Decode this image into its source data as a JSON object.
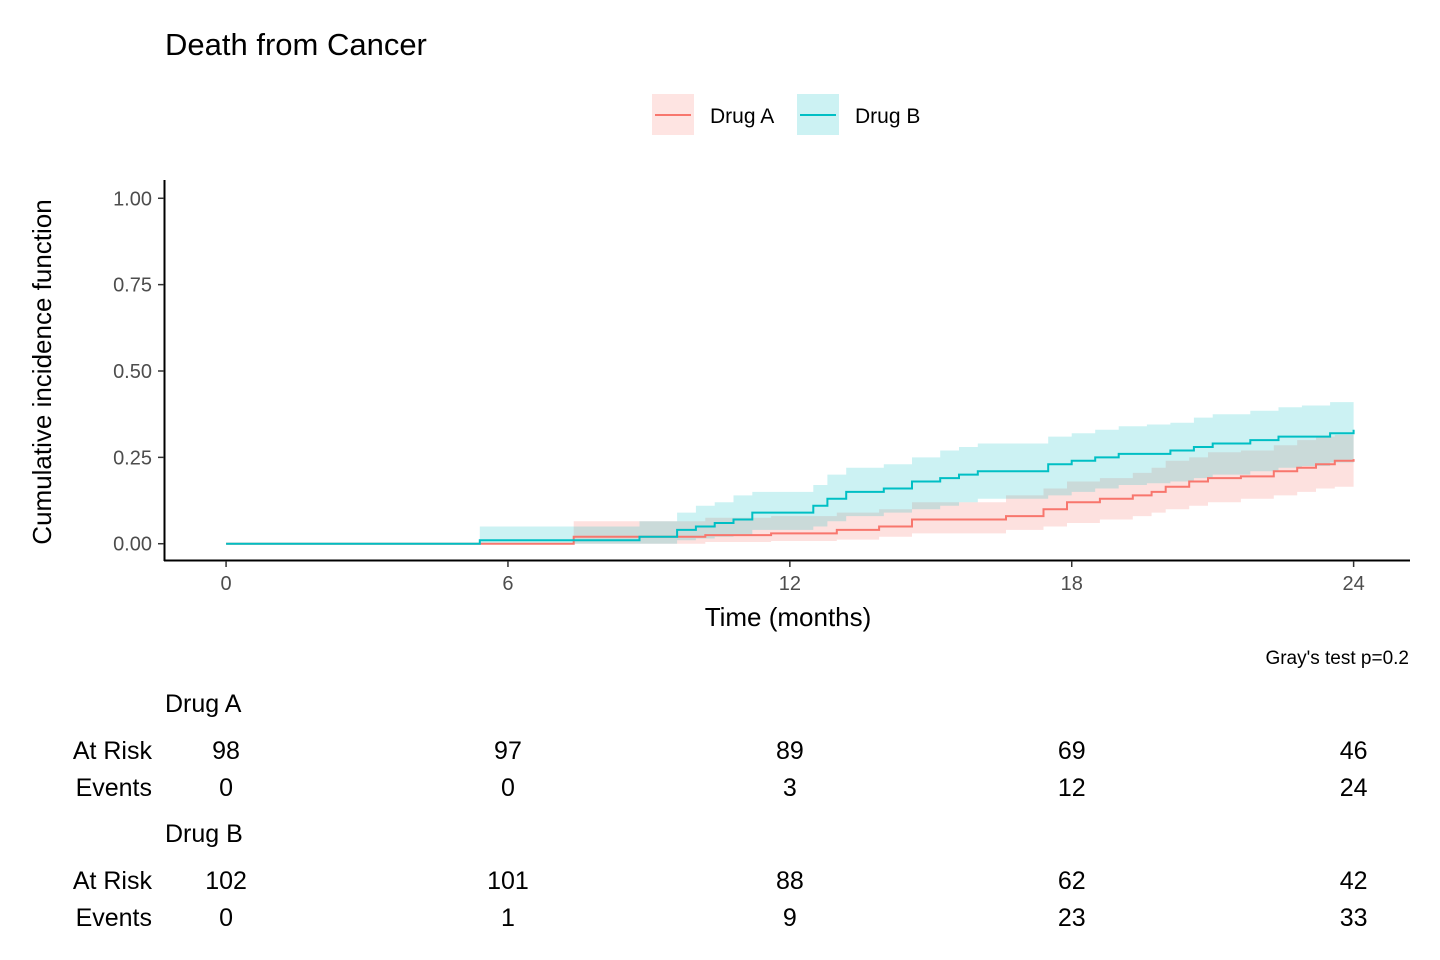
{
  "chart_data": {
    "type": "line",
    "title": "Death from Cancer",
    "xlabel": "Time (months)",
    "ylabel": "Cumulative incidence function",
    "xlim": [
      -1.3,
      25.2
    ],
    "ylim": [
      -0.05,
      1.05
    ],
    "x_ticks": [
      0,
      6,
      12,
      18,
      24
    ],
    "x_tick_labels": [
      "0",
      "6",
      "12",
      "18",
      "24"
    ],
    "y_ticks": [
      0,
      0.25,
      0.5,
      0.75,
      1
    ],
    "y_tick_labels": [
      "0.00",
      "0.25",
      "0.50",
      "0.75",
      "1.00"
    ],
    "legend_position": "top",
    "grid": false,
    "caption": "Gray's test p=0.2",
    "series": [
      {
        "name": "Drug A",
        "color": "#F8766D",
        "band_color": "#FFE1E1",
        "x": [
          0,
          7.4,
          10.2,
          11.6,
          13.0,
          13.9,
          14.6,
          16.6,
          17.4,
          17.9,
          18.6,
          19.3,
          19.7,
          20.0,
          20.5,
          20.9,
          21.6,
          22.3,
          22.8,
          23.2,
          23.6,
          24.0
        ],
        "y": [
          0,
          0.02,
          0.025,
          0.03,
          0.04,
          0.05,
          0.07,
          0.08,
          0.1,
          0.12,
          0.13,
          0.14,
          0.15,
          0.165,
          0.18,
          0.19,
          0.195,
          0.21,
          0.22,
          0.23,
          0.24,
          0.245
        ],
        "lower": [
          0,
          0,
          0.005,
          0.008,
          0.012,
          0.02,
          0.03,
          0.04,
          0.05,
          0.06,
          0.07,
          0.08,
          0.09,
          0.1,
          0.11,
          0.12,
          0.13,
          0.14,
          0.15,
          0.16,
          0.165,
          0.17
        ],
        "upper": [
          0,
          0.065,
          0.075,
          0.08,
          0.09,
          0.1,
          0.12,
          0.14,
          0.16,
          0.18,
          0.19,
          0.205,
          0.22,
          0.24,
          0.25,
          0.265,
          0.27,
          0.285,
          0.3,
          0.31,
          0.315,
          0.325
        ]
      },
      {
        "name": "Drug B",
        "color": "#00BFC4",
        "band_color": "#C9EFF1",
        "x": [
          0,
          5.4,
          7.3,
          8.8,
          9.6,
          10.0,
          10.4,
          10.8,
          11.2,
          12.5,
          12.8,
          13.2,
          14.0,
          14.6,
          15.2,
          15.6,
          16.0,
          16.4,
          17.5,
          18.0,
          18.5,
          19.0,
          19.6,
          20.1,
          20.6,
          21.0,
          21.8,
          22.4,
          22.9,
          23.5,
          24.0
        ],
        "y": [
          0,
          0.01,
          0.01,
          0.02,
          0.04,
          0.05,
          0.06,
          0.07,
          0.09,
          0.11,
          0.13,
          0.15,
          0.16,
          0.18,
          0.19,
          0.2,
          0.21,
          0.21,
          0.23,
          0.24,
          0.25,
          0.26,
          0.26,
          0.27,
          0.28,
          0.29,
          0.3,
          0.31,
          0.31,
          0.32,
          0.33
        ],
        "lower": [
          0,
          0,
          0,
          0,
          0.01,
          0.015,
          0.02,
          0.025,
          0.04,
          0.05,
          0.065,
          0.08,
          0.09,
          0.1,
          0.11,
          0.12,
          0.13,
          0.13,
          0.14,
          0.15,
          0.16,
          0.17,
          0.175,
          0.18,
          0.19,
          0.2,
          0.21,
          0.22,
          0.225,
          0.235,
          0.245
        ],
        "upper": [
          0,
          0.05,
          0.05,
          0.065,
          0.09,
          0.11,
          0.12,
          0.14,
          0.15,
          0.17,
          0.2,
          0.22,
          0.23,
          0.25,
          0.27,
          0.28,
          0.29,
          0.29,
          0.31,
          0.32,
          0.33,
          0.34,
          0.345,
          0.35,
          0.365,
          0.375,
          0.385,
          0.395,
          0.4,
          0.41,
          0.42
        ]
      }
    ]
  },
  "risk_table": {
    "times": [
      0,
      6,
      12,
      18,
      24
    ],
    "groups": [
      {
        "name": "Drug A",
        "rows": [
          {
            "label": "At Risk",
            "values": [
              "98",
              "97",
              "89",
              "69",
              "46"
            ]
          },
          {
            "label": "Events",
            "values": [
              "0",
              "0",
              "3",
              "12",
              "24"
            ]
          }
        ]
      },
      {
        "name": "Drug B",
        "rows": [
          {
            "label": "At Risk",
            "values": [
              "102",
              "101",
              "88",
              "62",
              "42"
            ]
          },
          {
            "label": "Events",
            "values": [
              "0",
              "1",
              "9",
              "23",
              "33"
            ]
          }
        ]
      }
    ]
  }
}
